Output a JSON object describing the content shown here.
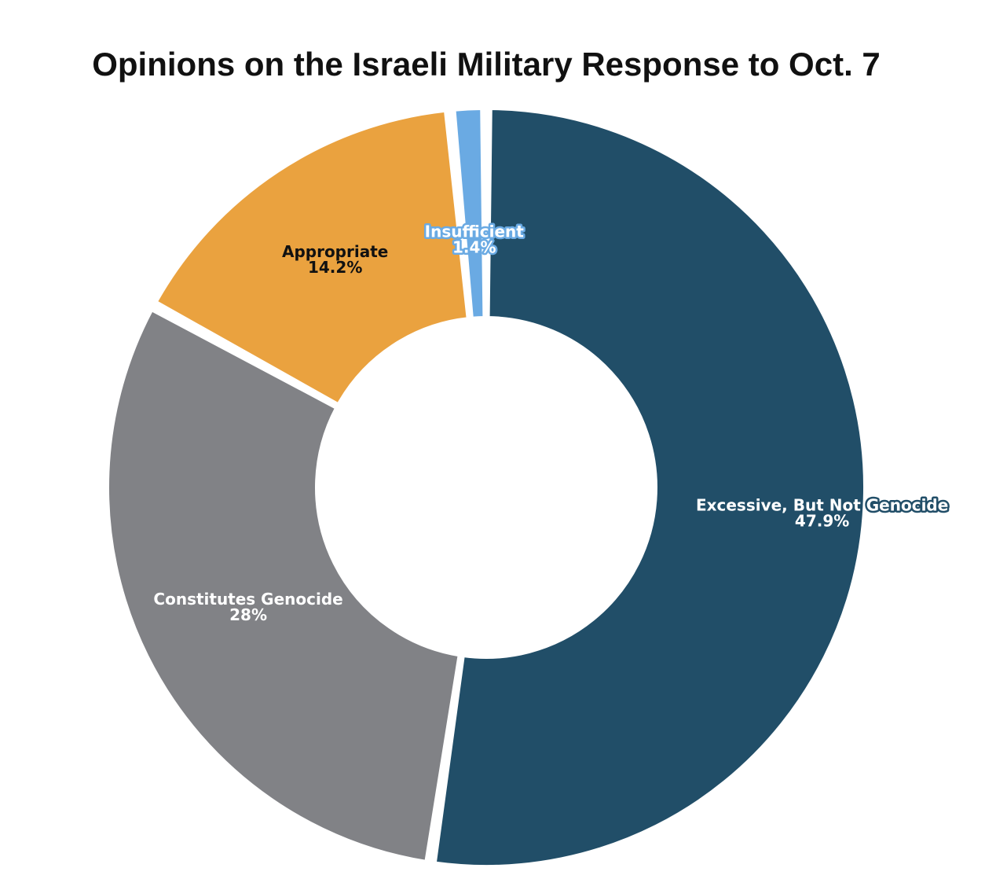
{
  "chart_data": {
    "type": "pie",
    "donut": true,
    "title": "Opinions on the Israeli Military Response to Oct. 7",
    "slices": [
      {
        "name": "Excessive, But Not Genocide",
        "value": 47.9,
        "value_label": "47.9%",
        "color": "#214e68",
        "text_color": "#ffffff",
        "halo": true
      },
      {
        "name": "Constitutes Genocide",
        "value": 28,
        "value_label": "28%",
        "color": "#818286",
        "text_color": "#ffffff",
        "halo": false
      },
      {
        "name": "Appropriate",
        "value": 14.2,
        "value_label": "14.2%",
        "color": "#eaa23f",
        "text_color": "#111111",
        "halo": false
      },
      {
        "name": "Insufficient",
        "value": 1.4,
        "value_label": "1.4%",
        "color": "#6aaae3",
        "text_color": "#ffffff",
        "halo": true
      }
    ],
    "legend": "none",
    "start": "top",
    "direction": "clockwise"
  }
}
